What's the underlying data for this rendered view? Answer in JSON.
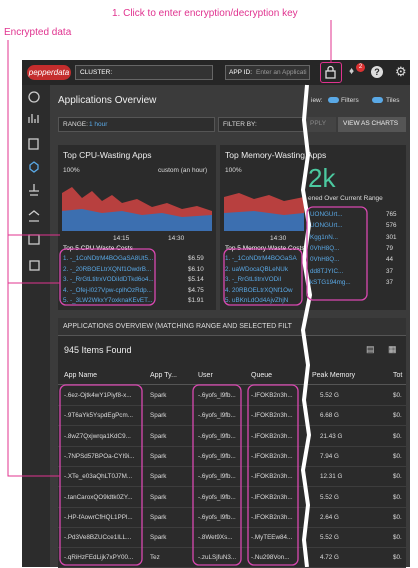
{
  "annotations": {
    "key_hint": "1. Click to enter encryption/decryption key",
    "encrypted": "Encrypted data"
  },
  "header": {
    "logo": "pepperdata",
    "cluster_label": "CLUSTER:",
    "app_id_label": "APP ID:",
    "app_id_placeholder": "Enter an Applicati",
    "badge": "2"
  },
  "page": {
    "title": "Applications Overview",
    "view_label": "iew:",
    "filters": "Filters",
    "tiles": "Tiles",
    "range_label": "RANGE:",
    "range_value": "1 hour",
    "filter_by": "FILTER BY:",
    "apply": "PPLY",
    "view_as_charts": "VIEW AS CHARTS"
  },
  "cpu_panel": {
    "title": "Top CPU-Wasting Apps",
    "y_top": "100%",
    "y_bottom": "0%",
    "range_note": "custom (an hour)",
    "x_labels": [
      "14:15",
      "14:30"
    ],
    "list_title": "Top 5 CPU Waste Costs",
    "items": [
      {
        "name": "1. -_1CoNDtrM4BOGaSA8Ut5...",
        "cost": "$6.59"
      },
      {
        "name": "2. -_20RBOELtrXQNf1OwdrB...",
        "cost": "$6.10"
      },
      {
        "name": "3. -_RrGtLtitrxVODiIdDTkd6o4...",
        "cost": "$5.14"
      },
      {
        "name": "4. -_Ofej-l027Vpw-cplhOzRdp...",
        "cost": "$4.75"
      },
      {
        "name": "5. -_3LW2WkxY7oxknaKEvET...",
        "cost": "$1.91"
      }
    ]
  },
  "memory_panel": {
    "title": "Top Memory-Wasting Apps",
    "y_top": "100%",
    "y_bottom": "0%",
    "x_label": "14:30",
    "list_title": "Top 5 Memory Waste Costs",
    "items": [
      "1. -_1CoNDtrM4BOGaSA",
      "2. uaWDocaQBLeNUk",
      "3. -_RrGtLtitrxVODiI",
      "4. 20RBOELtrXQNf1Ow",
      "5. uBKnLdOd4AjvZhjN"
    ],
    "big_value": "2k",
    "big_caption": "ened Over Current Range",
    "top_items": [
      {
        "name": "UONGUrt...",
        "count": 765
      },
      {
        "name": "UONGUrt...",
        "count": 576
      },
      {
        "name": "Kgg1nN...",
        "count": 301
      },
      {
        "name": "0VhH8Q...",
        "count": 79
      },
      {
        "name": "0VhH8Q...",
        "count": 44
      },
      {
        "name": "dd8TJYIC...",
        "count": 37
      },
      {
        "name": "kSTG194mg...",
        "count": 37
      }
    ]
  },
  "table": {
    "title": "APPLICATIONS OVERVIEW (MATCHING RANGE AND SELECTED FILT",
    "count": "945 Items Found",
    "columns": [
      "App Name",
      "App Ty...",
      "User",
      "Queue",
      "Peak Memory",
      "Tot"
    ],
    "rows": [
      [
        "-.6ez-Ojtk4wY1Piyf8-x...",
        "Spark",
        "-.6yofs_l9fb...",
        "-.lFOKB2n3h...",
        "5.52 G",
        "$0."
      ],
      [
        "-.9T6aYk5YspdEgPcm...",
        "Spark",
        "-.6yofs_l9fb...",
        "-.lFOKB2n3h...",
        "6.68 G",
        "$0."
      ],
      [
        "-.8wZ7Qxjwrqa1KdC9...",
        "Spark",
        "-.6yofs_l9fb...",
        "-.lFOKB2n3h...",
        "21.43 G",
        "$0."
      ],
      [
        "-.7NPSd57BPOa-CYI9i...",
        "Spark",
        "-.6yofs_l9fb...",
        "-.lFOKB2n3h...",
        "7.94 G",
        "$0."
      ],
      [
        "-.XTe_e03aQhLT0J7M...",
        "Spark",
        "-.6yofs_l9fb...",
        "-.lFOKB2n3h...",
        "12.31 G",
        "$0."
      ],
      [
        "-.tanCaroxQO9ldtk0ZY...",
        "Spark",
        "-.6yofs_l9fb...",
        "-.lFOKB2n3h...",
        "5.52 G",
        "$0."
      ],
      [
        "-.HP-fAowrCfHQL1PPl...",
        "Spark",
        "-.6yofs_l9fb...",
        "-.lFOKB2n3h...",
        "2.64 G",
        "$0."
      ],
      [
        "-.Pd3Ve8BZUCce1ILL...",
        "Spark",
        "-.8Wet9Xs...",
        "-.MyTEEw84...",
        "5.52 G",
        "$0."
      ],
      [
        "-.qRiHzFEdLijk7xPY00...",
        "Tez",
        "-.zuLSjfuN3...",
        "-.Nu298Von...",
        "4.72 G",
        "$0."
      ]
    ]
  }
}
